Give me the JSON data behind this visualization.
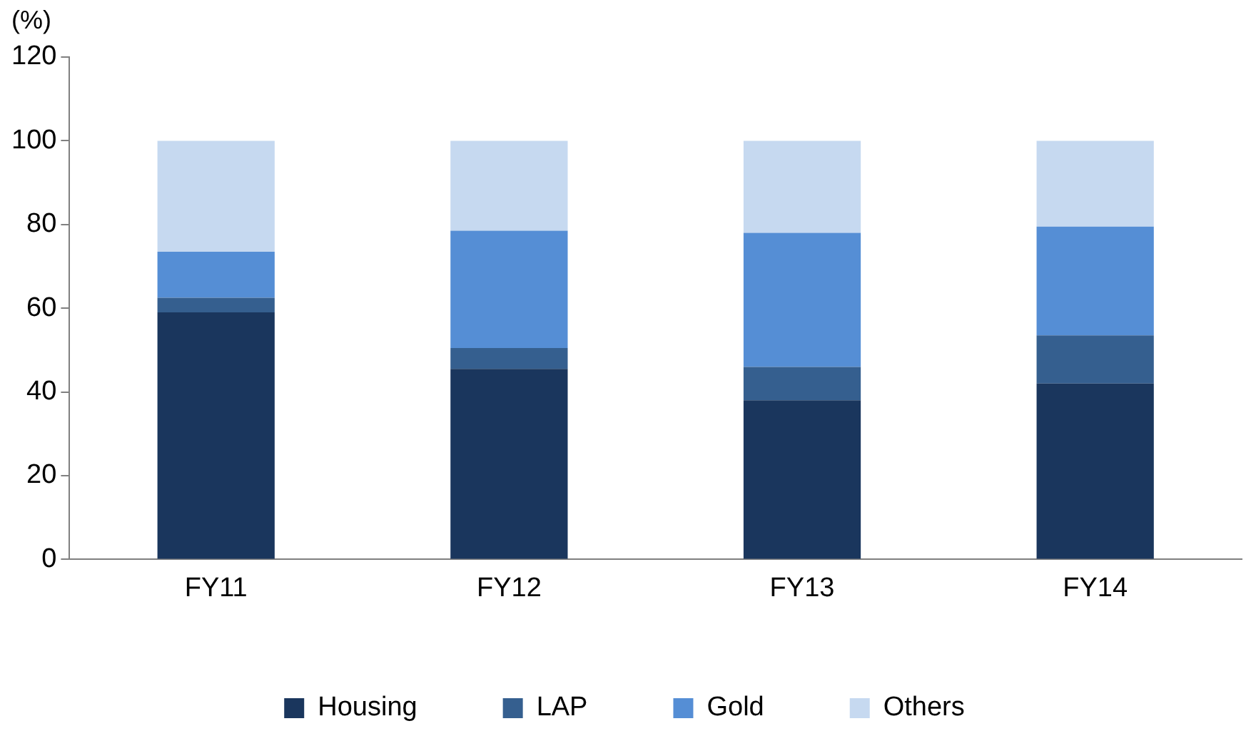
{
  "chart_data": {
    "type": "bar",
    "stacked": true,
    "ylabel": "(%)",
    "categories": [
      "FY11",
      "FY12",
      "FY13",
      "FY14"
    ],
    "series": [
      {
        "name": "Housing",
        "color": "#1a365d",
        "values": [
          59,
          45.5,
          38,
          42
        ]
      },
      {
        "name": "LAP",
        "color": "#355f8f",
        "values": [
          3.5,
          5,
          8,
          11.5
        ]
      },
      {
        "name": "Gold",
        "color": "#558ed5",
        "values": [
          11,
          28,
          32,
          26
        ]
      },
      {
        "name": "Others",
        "color": "#c6d9f0",
        "values": [
          26.5,
          21.5,
          22,
          20.5
        ]
      }
    ],
    "ylim": [
      0,
      120
    ],
    "yticks": [
      0,
      20,
      40,
      60,
      80,
      100,
      120
    ],
    "grid": false,
    "legend": "bottom"
  }
}
